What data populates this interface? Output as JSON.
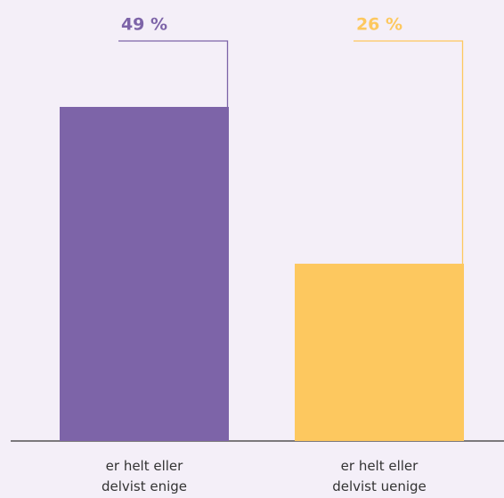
{
  "chart_data": {
    "type": "bar",
    "categories": [
      "er helt eller delvist enige",
      "er helt eller delvist uenige"
    ],
    "values": [
      49,
      26
    ],
    "value_labels": [
      "49 %",
      "26 %"
    ],
    "colors": [
      "#7d64a8",
      "#fdc85f"
    ]
  }
}
